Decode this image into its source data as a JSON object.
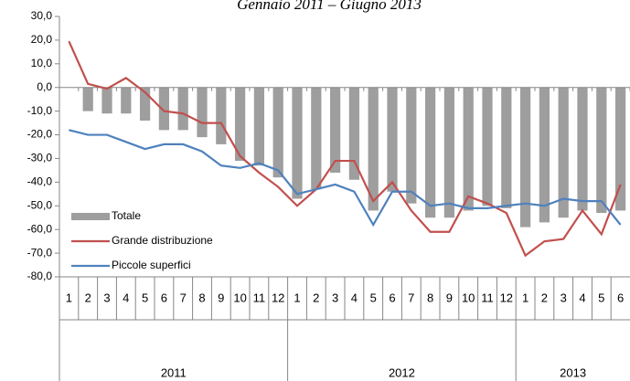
{
  "chart_data": {
    "type": "bar_line",
    "title": "Gennaio 2011 – Giugno 2013",
    "categories": [
      "1",
      "2",
      "3",
      "4",
      "5",
      "6",
      "7",
      "8",
      "9",
      "10",
      "11",
      "12",
      "1",
      "2",
      "3",
      "4",
      "5",
      "6",
      "7",
      "8",
      "9",
      "10",
      "11",
      "12",
      "1",
      "2",
      "3",
      "4",
      "5",
      "6"
    ],
    "years": [
      "2011",
      "2012",
      "2013"
    ],
    "series": [
      {
        "name": "Totale",
        "type": "bar",
        "color": "#9e9e9e",
        "values": [
          0,
          -10,
          -11,
          -11,
          -14,
          -18,
          -18,
          -21,
          -24,
          -31,
          -33,
          -38,
          -47,
          -43,
          -36,
          -39,
          -52,
          -44,
          -49,
          -55,
          -55,
          -52,
          -50,
          -51,
          -59,
          -57,
          -55,
          -52,
          -53,
          -52
        ]
      },
      {
        "name": "Grande distribuzione",
        "type": "line",
        "color": "#c0504d",
        "values": [
          19.5,
          1.5,
          -0.5,
          4,
          -2,
          -10,
          -11,
          -15,
          -15,
          -29,
          -36,
          -42,
          -50,
          -43,
          -31,
          -31,
          -48,
          -40,
          -52,
          -61,
          -61,
          -46,
          -49,
          -53,
          -71,
          -65,
          -64,
          -52,
          -62,
          -41
        ]
      },
      {
        "name": "Piccole superfici",
        "type": "line",
        "color": "#4f81bd",
        "values": [
          -18,
          -20,
          -20,
          -23,
          -26,
          -24,
          -24,
          -27,
          -33,
          -34,
          -32,
          -35,
          -45,
          -43,
          -41,
          -44,
          -58,
          -44,
          -44,
          -50,
          -49,
          -51,
          -51,
          -50,
          -49,
          -50,
          -47,
          -48,
          -48,
          -58
        ]
      }
    ],
    "ylim": [
      -80,
      30
    ],
    "yticks": [
      {
        "value": -80,
        "label": "-80,0"
      },
      {
        "value": -70,
        "label": "-70,0"
      },
      {
        "value": -60,
        "label": "-60,0"
      },
      {
        "value": -50,
        "label": "-50,0"
      },
      {
        "value": -40,
        "label": "-40,0"
      },
      {
        "value": -30,
        "label": "-30,0"
      },
      {
        "value": -20,
        "label": "-20,0"
      },
      {
        "value": -10,
        "label": "-10,0"
      },
      {
        "value": 0,
        "label": "0,0"
      },
      {
        "value": 10,
        "label": "10,0"
      },
      {
        "value": 20,
        "label": "20,0"
      },
      {
        "value": 30,
        "label": "30,0"
      }
    ],
    "grid": false,
    "legend": "lower left"
  }
}
